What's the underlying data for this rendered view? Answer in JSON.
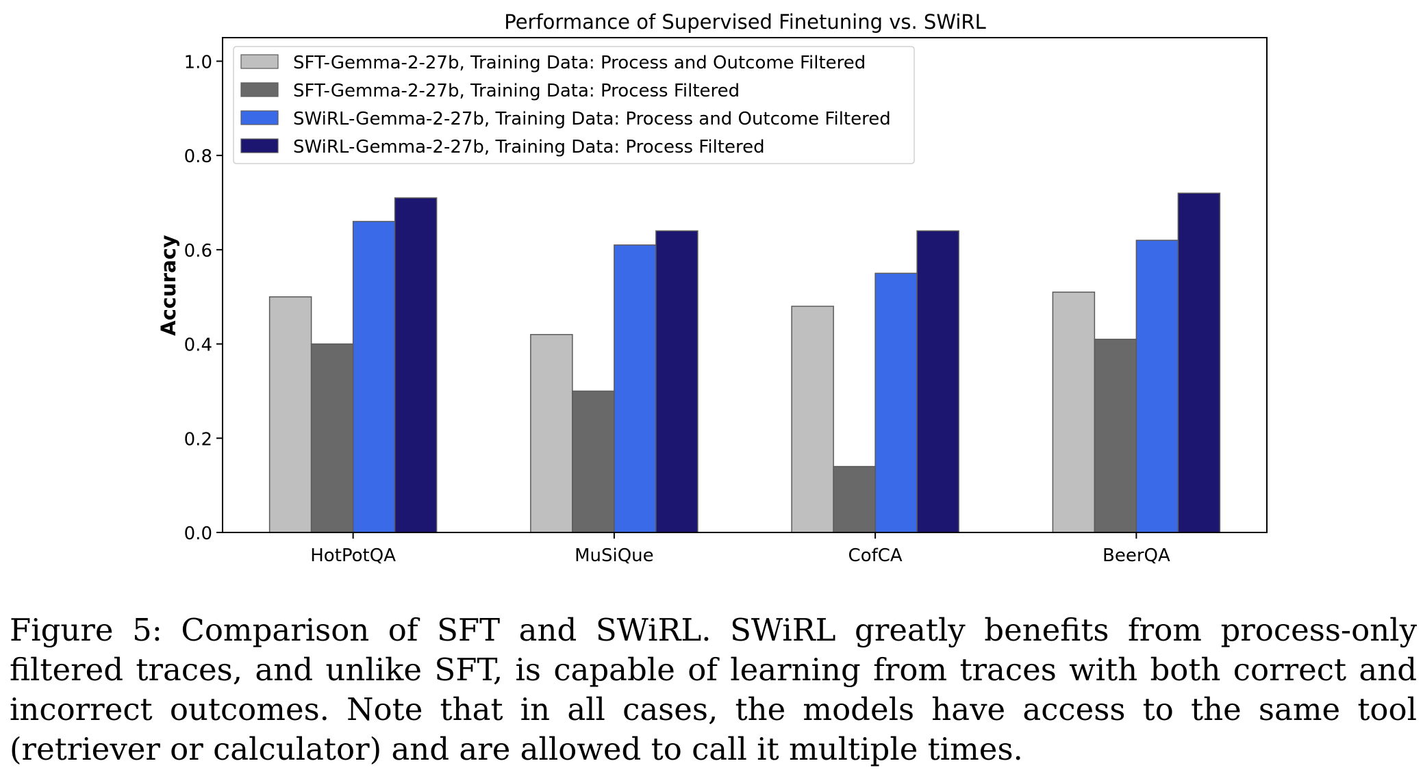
{
  "chart_data": {
    "type": "bar",
    "title": "Performance of Supervised Finetuning vs. SWiRL",
    "xlabel": "",
    "ylabel": "Accuracy",
    "ylim": [
      0,
      1.05
    ],
    "yticks": [
      "0.0",
      "0.2",
      "0.4",
      "0.6",
      "0.8",
      "1.0"
    ],
    "categories": [
      "HotPotQA",
      "MuSiQue",
      "CofCA",
      "BeerQA"
    ],
    "legend_position": "top-left",
    "series": [
      {
        "name": "SFT-Gemma-2-27b, Training Data: Process and Outcome Filtered",
        "color": "#bfbfbf",
        "values": [
          0.5,
          0.42,
          0.48,
          0.51
        ]
      },
      {
        "name": "SFT-Gemma-2-27b, Training Data: Process Filtered",
        "color": "#696969",
        "values": [
          0.4,
          0.3,
          0.14,
          0.41
        ]
      },
      {
        "name": "SWiRL-Gemma-2-27b, Training Data: Process and Outcome Filtered",
        "color": "#3a6ae8",
        "values": [
          0.66,
          0.61,
          0.55,
          0.62
        ]
      },
      {
        "name": "SWiRL-Gemma-2-27b, Training Data: Process Filtered",
        "color": "#1d1670",
        "values": [
          0.71,
          0.64,
          0.64,
          0.72
        ]
      }
    ]
  },
  "caption": {
    "text": "Figure 5: Comparison of SFT and SWiRL. SWiRL greatly benefits from process-only filtered traces, and unlike SFT, is capable of learning from traces with both correct and incorrect outcomes.  Note that in all cases, the models have access to the same tool (retriever or calculator) and are allowed to call it multiple times."
  }
}
